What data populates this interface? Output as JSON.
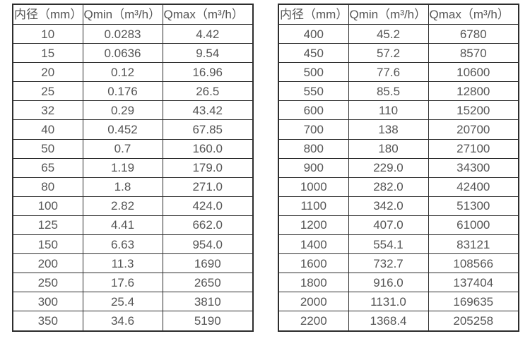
{
  "page": {
    "background_color": "#ffffff",
    "border_color": "#2d2d2d",
    "text_color": "#555555"
  },
  "chart_data": [
    {
      "type": "table",
      "title": "",
      "columns": [
        "内径（mm）",
        "Qmin（m³/h）",
        "Qmax（m³/h）"
      ],
      "rows": [
        [
          "10",
          "0.0283",
          "4.42"
        ],
        [
          "15",
          "0.0636",
          "9.54"
        ],
        [
          "20",
          "0.12",
          "16.96"
        ],
        [
          "25",
          "0.176",
          "26.5"
        ],
        [
          "32",
          "0.29",
          "43.42"
        ],
        [
          "40",
          "0.452",
          "67.85"
        ],
        [
          "50",
          "0.7",
          "160.0"
        ],
        [
          "65",
          "1.19",
          "179.0"
        ],
        [
          "80",
          "1.8",
          "271.0"
        ],
        [
          "100",
          "2.82",
          "424.0"
        ],
        [
          "125",
          "4.41",
          "662.0"
        ],
        [
          "150",
          "6.63",
          "954.0"
        ],
        [
          "200",
          "11.3",
          "1690"
        ],
        [
          "250",
          "17.6",
          "2650"
        ],
        [
          "300",
          "25.4",
          "3810"
        ],
        [
          "350",
          "34.6",
          "5190"
        ]
      ]
    },
    {
      "type": "table",
      "title": "",
      "columns": [
        "内径（mm）",
        "Qmin（m³/h）",
        "Qmax（m³/h）"
      ],
      "rows": [
        [
          "400",
          "45.2",
          "6780"
        ],
        [
          "450",
          "57.2",
          "8570"
        ],
        [
          "500",
          "77.6",
          "10600"
        ],
        [
          "550",
          "85.5",
          "12800"
        ],
        [
          "600",
          "110",
          "15200"
        ],
        [
          "700",
          "138",
          "20700"
        ],
        [
          "800",
          "180",
          "27100"
        ],
        [
          "900",
          "229.0",
          "34300"
        ],
        [
          "1000",
          "282.0",
          "42400"
        ],
        [
          "1100",
          "342.0",
          "51300"
        ],
        [
          "1200",
          "407.0",
          "61000"
        ],
        [
          "1400",
          "554.1",
          "83121"
        ],
        [
          "1600",
          "732.7",
          "108566"
        ],
        [
          "1800",
          "916.0",
          "137404"
        ],
        [
          "2000",
          "1131.0",
          "169635"
        ],
        [
          "2200",
          "1368.4",
          "205258"
        ]
      ]
    }
  ]
}
